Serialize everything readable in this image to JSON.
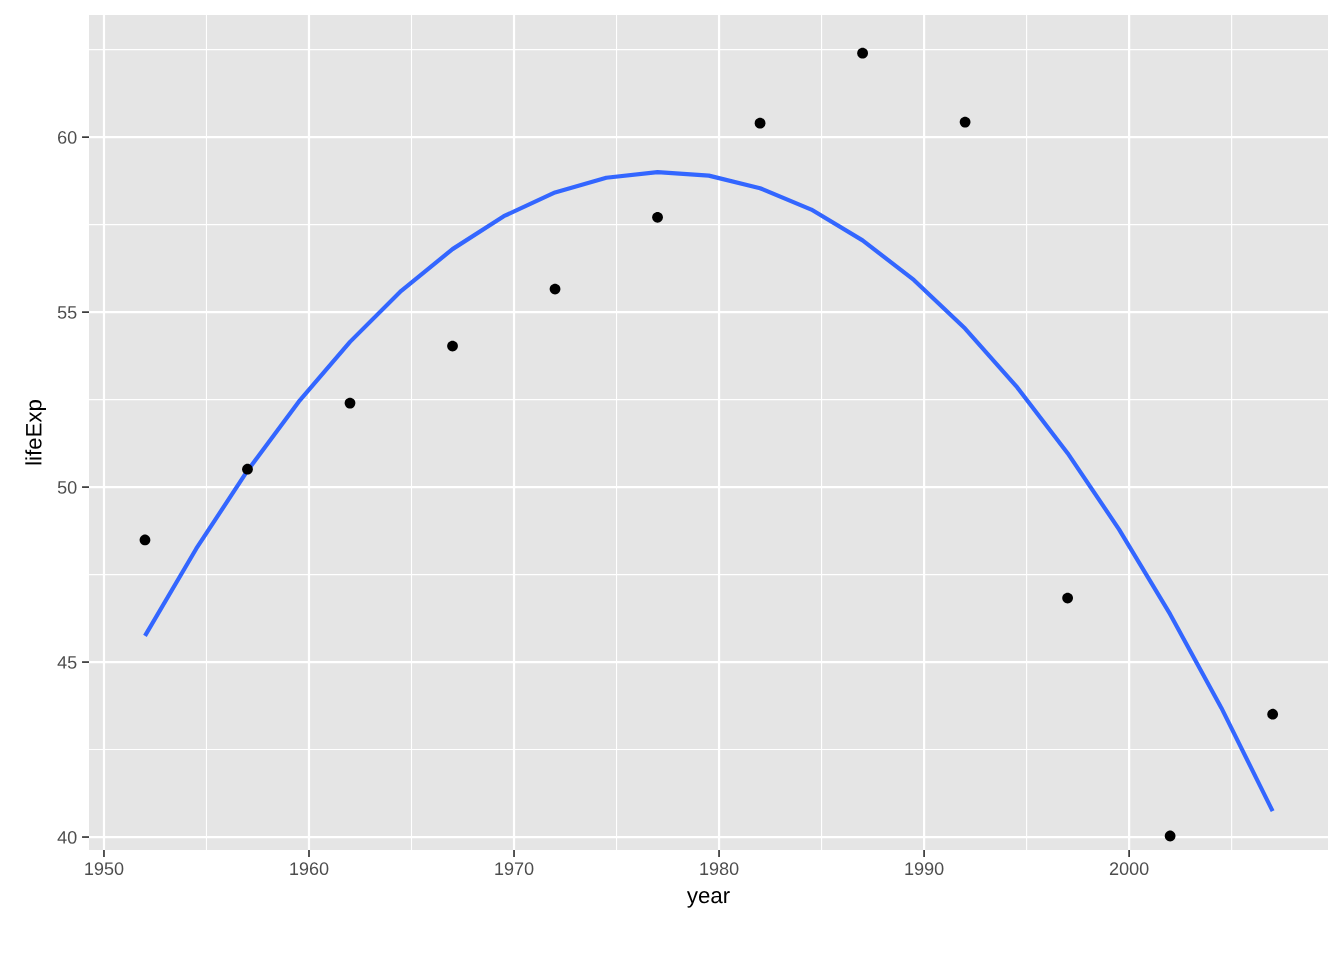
{
  "chart_data": {
    "type": "scatter",
    "xlabel": "year",
    "ylabel": "lifeExp",
    "xlim": [
      1949.27,
      2009.7
    ],
    "ylim": [
      39.63,
      63.49
    ],
    "xticks": [
      1950,
      1960,
      1970,
      1980,
      1990,
      2000
    ],
    "yticks": [
      40,
      45,
      50,
      55,
      60
    ],
    "grid": true,
    "series": [
      {
        "marker": "circle",
        "color": "#000000",
        "x": [
          1952,
          1957,
          1962,
          1967,
          1972,
          1977,
          1982,
          1987,
          1992,
          1997,
          2002,
          2007
        ],
        "values": [
          48.49,
          50.51,
          52.4,
          54.03,
          55.66,
          57.71,
          60.4,
          62.4,
          60.43,
          46.83,
          40.03,
          43.51
        ]
      },
      {
        "type": "line",
        "color": "#3366ff",
        "line_style": "solid",
        "x": [
          1952,
          1954.5,
          1957,
          1959.5,
          1962,
          1964.5,
          1967,
          1969.5,
          1972,
          1974.5,
          1977,
          1979.5,
          1982,
          1984.5,
          1987,
          1989.5,
          1992,
          1994.5,
          1997,
          1999.5,
          2002,
          2004.5,
          2007
        ],
        "values": [
          45.75,
          48.24,
          50.47,
          52.44,
          54.15,
          55.61,
          56.8,
          57.74,
          58.42,
          58.84,
          59.0,
          58.9,
          58.54,
          57.93,
          57.05,
          55.92,
          54.53,
          52.88,
          50.97,
          48.8,
          46.37,
          43.69,
          40.74
        ]
      }
    ]
  }
}
